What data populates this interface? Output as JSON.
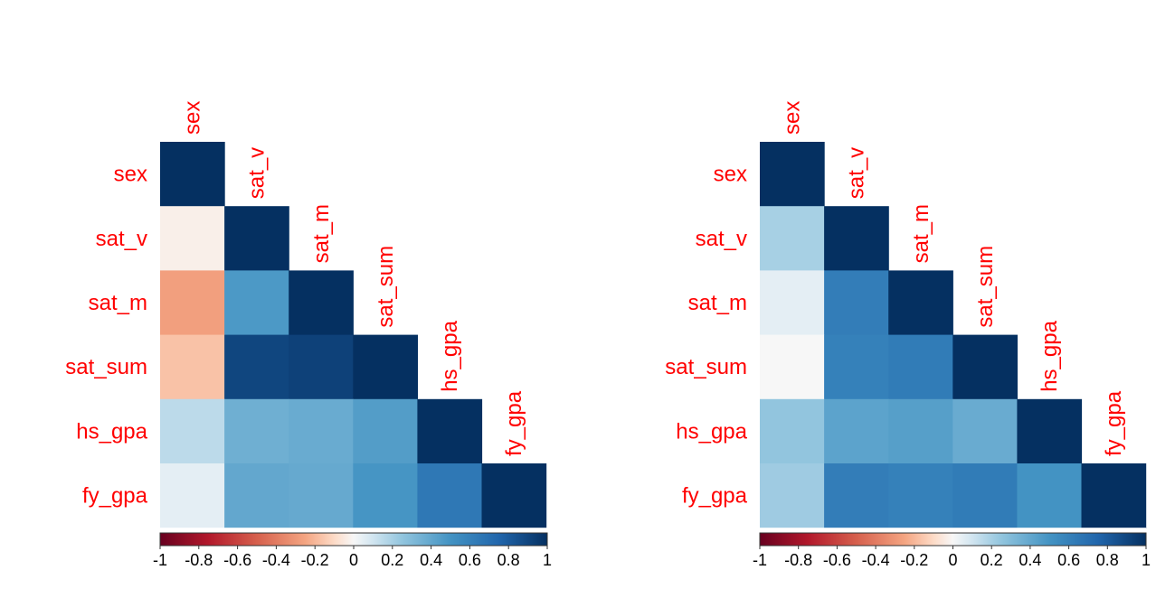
{
  "chart_data": [
    {
      "type": "heatmap",
      "subtype": "lower-triangle correlation matrix",
      "variables": [
        "sex",
        "sat_v",
        "sat_m",
        "sat_sum",
        "hs_gpa",
        "fy_gpa"
      ],
      "matrix": [
        [
          1.0,
          null,
          null,
          null,
          null,
          null
        ],
        [
          -0.03,
          1.0,
          null,
          null,
          null,
          null
        ],
        [
          -0.27,
          0.47,
          1.0,
          null,
          null,
          null
        ],
        [
          -0.17,
          0.9,
          0.92,
          1.0,
          null,
          null
        ],
        [
          0.15,
          0.36,
          0.38,
          0.45,
          1.0,
          null
        ],
        [
          0.05,
          0.4,
          0.39,
          0.49,
          0.65,
          1.0
        ]
      ],
      "colorbar": {
        "range": [
          -1,
          1
        ],
        "ticks": [
          "-1",
          "-0.8",
          "-0.6",
          "-0.4",
          "-0.2",
          "0",
          "0.2",
          "0.4",
          "0.6",
          "0.8",
          "1"
        ]
      },
      "colors": {
        "label": "#ff0000",
        "low": "#67001f",
        "mid": "#f7f7f7",
        "high": "#053061"
      }
    },
    {
      "type": "heatmap",
      "subtype": "lower-triangle correlation matrix",
      "variables": [
        "sex",
        "sat_v",
        "sat_m",
        "sat_sum",
        "hs_gpa",
        "fy_gpa"
      ],
      "matrix": [
        [
          1.0,
          null,
          null,
          null,
          null,
          null
        ],
        [
          0.2,
          1.0,
          null,
          null,
          null,
          null
        ],
        [
          0.05,
          0.62,
          1.0,
          null,
          null,
          null
        ],
        [
          0.0,
          0.6,
          0.63,
          1.0,
          null,
          null
        ],
        [
          0.25,
          0.42,
          0.44,
          0.38,
          1.0,
          null
        ],
        [
          0.22,
          0.62,
          0.6,
          0.63,
          0.5,
          1.0
        ]
      ],
      "colorbar": {
        "range": [
          -1,
          1
        ],
        "ticks": [
          "-1",
          "-0.8",
          "-0.6",
          "-0.4",
          "-0.2",
          "0",
          "0.2",
          "0.4",
          "0.6",
          "0.8",
          "1"
        ]
      },
      "colors": {
        "label": "#ff0000",
        "low": "#67001f",
        "mid": "#f7f7f7",
        "high": "#053061"
      }
    }
  ]
}
